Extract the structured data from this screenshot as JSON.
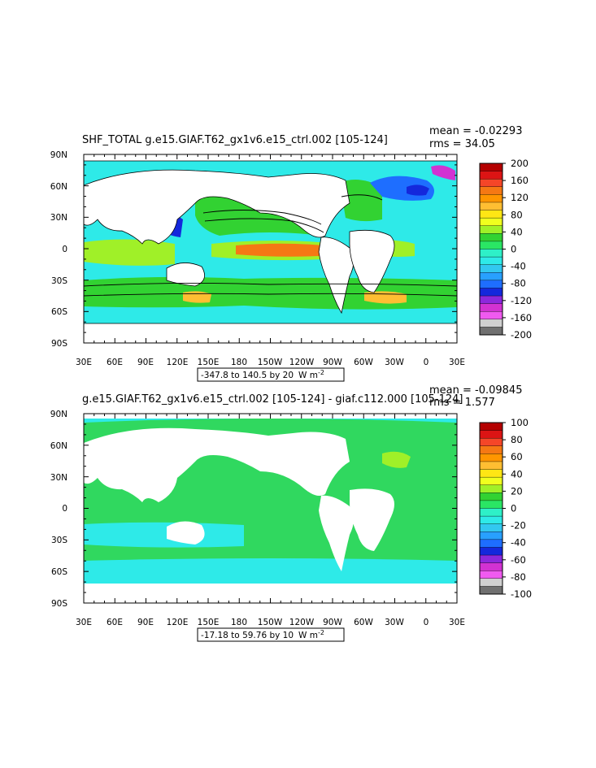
{
  "chart_data": [
    {
      "type": "heatmap",
      "title": "SHF_TOTAL g.e15.GIAF.T62_gx1v6.e15_ctrl.002 [105-124]",
      "mean_text": "mean = -0.02293",
      "rms_text": "rms = 34.05",
      "x_ticks": [
        "30E",
        "60E",
        "90E",
        "120E",
        "150E",
        "180",
        "150W",
        "120W",
        "90W",
        "60W",
        "30W",
        "0",
        "30E"
      ],
      "y_ticks": [
        "90N",
        "60N",
        "30N",
        "0",
        "30S",
        "60S",
        "90S"
      ],
      "xlim": [
        30,
        390
      ],
      "ylim": [
        -90,
        90
      ],
      "contour_info": "-347.8 to 140.5 by 20",
      "units": "W m",
      "units_exp": "-2",
      "colorbar": {
        "labels": [
          "200",
          "160",
          "120",
          "80",
          "40",
          "0",
          "-40",
          "-80",
          "-120",
          "-160",
          "-200"
        ],
        "colors": [
          "#b40000",
          "#dc1414",
          "#f54628",
          "#f57814",
          "#ff9600",
          "#ffbe32",
          "#ffe614",
          "#f0ff1e",
          "#a0f028",
          "#32d232",
          "#2ae664",
          "#2ef0c8",
          "#2eeae8",
          "#32c8f0",
          "#28a0ff",
          "#1e6eff",
          "#1428dc",
          "#8c28dc",
          "#d232d2",
          "#f05af0",
          "#d0d0d0",
          "#707070"
        ]
      }
    },
    {
      "type": "heatmap",
      "title": "g.e15.GIAF.T62_gx1v6.e15_ctrl.002 [105-124] - giaf.c112.000 [105-124]",
      "mean_text": "mean = -0.09845",
      "rms_text": "rms = 1.577",
      "x_ticks": [
        "30E",
        "60E",
        "90E",
        "120E",
        "150E",
        "180",
        "150W",
        "120W",
        "90W",
        "60W",
        "30W",
        "0",
        "30E"
      ],
      "y_ticks": [
        "90N",
        "60N",
        "30N",
        "0",
        "30S",
        "60S",
        "90S"
      ],
      "xlim": [
        30,
        390
      ],
      "ylim": [
        -90,
        90
      ],
      "contour_info": "-17.18 to 59.76 by 10",
      "units": "W m",
      "units_exp": "-2",
      "colorbar": {
        "labels": [
          "100",
          "80",
          "60",
          "40",
          "20",
          "0",
          "-20",
          "-40",
          "-60",
          "-80",
          "-100"
        ],
        "colors": [
          "#b40000",
          "#dc1414",
          "#f54628",
          "#f57814",
          "#ff9600",
          "#ffbe32",
          "#ffe614",
          "#f0ff1e",
          "#a0f028",
          "#32d232",
          "#2ae664",
          "#2ef0c8",
          "#2eeae8",
          "#32c8f0",
          "#28a0ff",
          "#1e6eff",
          "#1428dc",
          "#8c28dc",
          "#d232d2",
          "#f05af0",
          "#d0d0d0",
          "#707070"
        ]
      }
    }
  ]
}
